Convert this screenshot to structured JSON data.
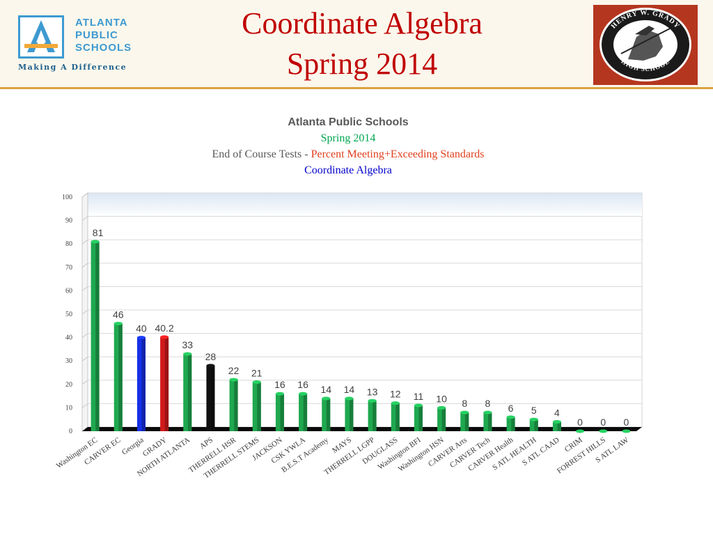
{
  "logo": {
    "word1": "ATLANTA",
    "word2": "PUBLIC",
    "word3": "SCHOOLS",
    "tagline": "Making A Difference"
  },
  "slide": {
    "title_line1": "Coordinate Algebra",
    "title_line2": "Spring 2014"
  },
  "school_logo": {
    "top_text": "HENRY W. GRADY",
    "bottom_text": "HIGH SCHOOL"
  },
  "chart_heading": {
    "line1": "Atlanta Public Schools",
    "line2": "Spring 2014",
    "line3_prefix": "End of Course Tests - ",
    "line3_highlight": "Percent Meeting+Exceeding Standards",
    "line4": "Coordinate Algebra"
  },
  "colors": {
    "default_bar": "#1fa84f",
    "georgia_bar": "#1530e6",
    "grady_bar": "#d11a1a",
    "aps_bar": "#111111",
    "title_red": "#c00000",
    "accent_line": "#d9a340"
  },
  "chart_data": {
    "type": "bar",
    "title": "Atlanta Public Schools",
    "subtitle": "Spring 2014 End of Course Tests - Percent Meeting+Exceeding Standards Coordinate Algebra",
    "xlabel": "",
    "ylabel": "",
    "ylim": [
      0,
      100
    ],
    "yticks": [
      0,
      10,
      20,
      30,
      40,
      50,
      60,
      70,
      80,
      90,
      100
    ],
    "grid": true,
    "categories": [
      "Washington EC",
      "CARVER EC",
      "Georgia",
      "GRADY",
      "NORTH ATLANTA",
      "APS",
      "THERRELL HSR",
      "THERRELL STEMS",
      "JACKSON",
      "CSK YWLA",
      "B.E.S.T Academy",
      "MAYS",
      "THERRELL LGPP",
      "DOUGLASS",
      "Washington BFI",
      "Washington HSN",
      "CARVER Arts",
      "CARVER Tech",
      "CARVER Health",
      "S ATL HEALTH",
      "S ATL CAAD",
      "CRIM",
      "FORREST HILLS",
      "S ATL LAW"
    ],
    "values": [
      81,
      46,
      40,
      40.2,
      33,
      28,
      22,
      21,
      16,
      16,
      14,
      14,
      13,
      12,
      11,
      10,
      8,
      8,
      6,
      5,
      4,
      0,
      0,
      0
    ],
    "value_labels": [
      "81",
      "46",
      "40",
      "40.2",
      "33",
      "28",
      "22",
      "21",
      "16",
      "16",
      "14",
      "14",
      "13",
      "12",
      "11",
      "10",
      "8",
      "8",
      "6",
      "5",
      "4",
      "0",
      "0",
      "0"
    ],
    "highlight": {
      "Georgia": "blue",
      "GRADY": "red",
      "APS": "black"
    }
  }
}
